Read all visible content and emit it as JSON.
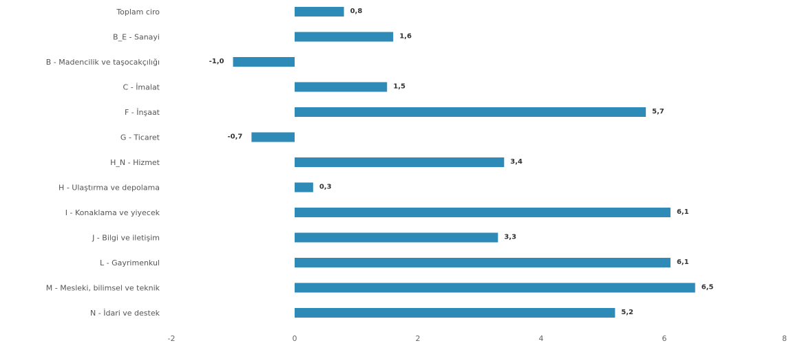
{
  "chart_data": {
    "type": "bar",
    "orientation": "horizontal",
    "categories": [
      "Toplam ciro",
      "B_E - Sanayi",
      "B - Madencilik ve taşocakçılığı",
      "C - İmalat",
      "F - İnşaat",
      "G - Ticaret",
      "H_N - Hizmet",
      "H - Ulaştırma ve depolama",
      "I - Konaklama ve yiyecek",
      "J - Bilgi ve iletişim",
      "L - Gayrimenkul",
      "M - Mesleki, bilimsel ve teknik",
      "N - İdari ve destek"
    ],
    "values": [
      0.8,
      1.6,
      -1.0,
      1.5,
      5.7,
      -0.7,
      3.4,
      0.3,
      6.1,
      3.3,
      6.1,
      6.5,
      5.2
    ],
    "value_labels": [
      "0,8",
      "1,6",
      "-1,0",
      "1,5",
      "5,7",
      "-0,7",
      "3,4",
      "0,3",
      "6,1",
      "3,3",
      "6,1",
      "6,5",
      "5,2"
    ],
    "xlim": [
      -2,
      8
    ],
    "ticks": [
      -2,
      0,
      2,
      4,
      6,
      8
    ],
    "tick_labels": [
      "-2",
      "0",
      "2",
      "4",
      "6",
      "8"
    ],
    "bar_color": "#2e8bb8",
    "grid": false,
    "legend": "none"
  }
}
